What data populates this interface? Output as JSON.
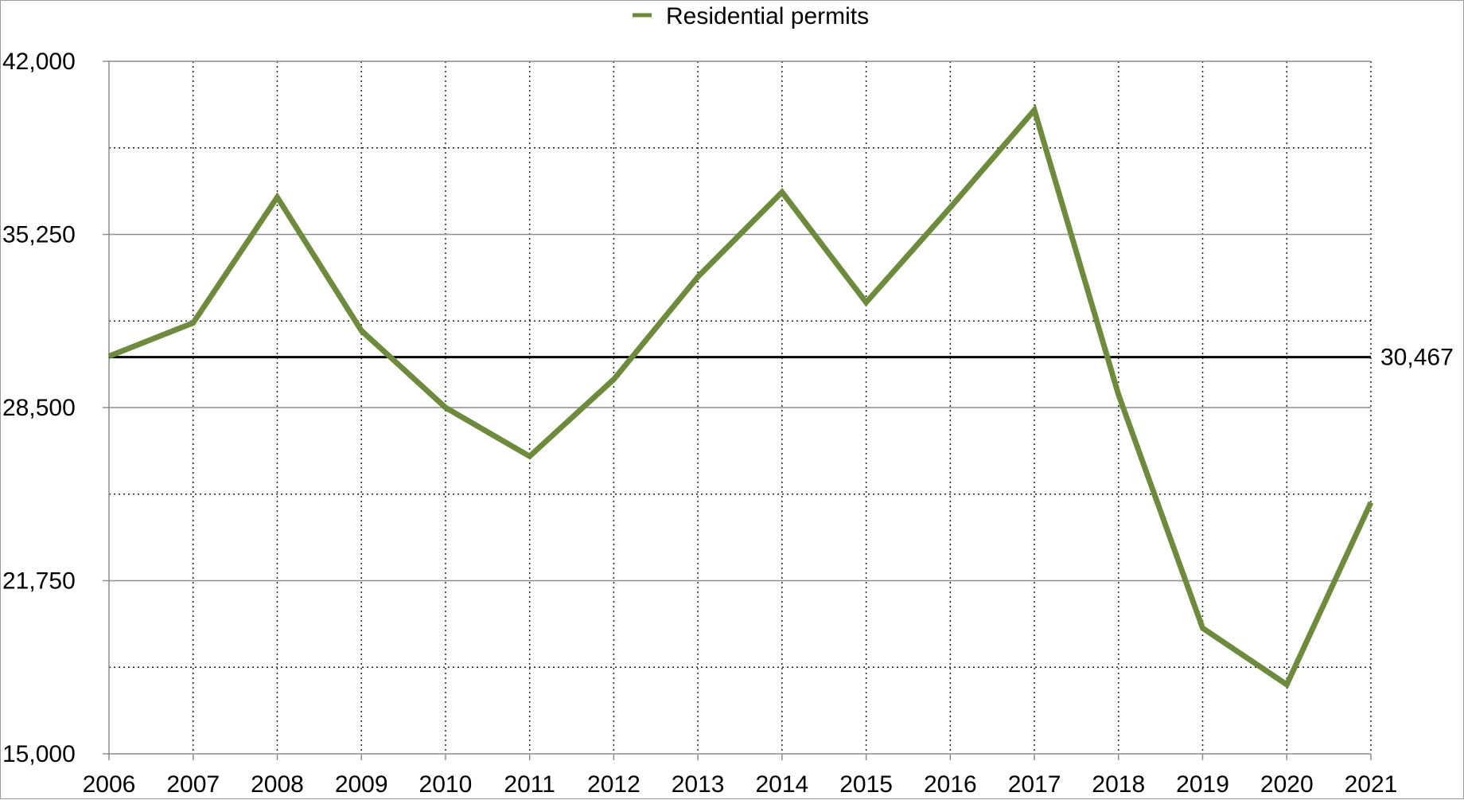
{
  "chart_data": {
    "type": "line",
    "title": "",
    "xlabel": "",
    "ylabel": "",
    "x": [
      "2006",
      "2007",
      "2008",
      "2009",
      "2010",
      "2011",
      "2012",
      "2013",
      "2014",
      "2015",
      "2016",
      "2017",
      "2018",
      "2019",
      "2020",
      "2021"
    ],
    "series": [
      {
        "name": "Residential permits",
        "color": "#6e8b3d",
        "values": [
          30500,
          31800,
          36700,
          31500,
          28500,
          26600,
          29600,
          33600,
          36900,
          32600,
          36300,
          40100,
          29000,
          19900,
          17700,
          24800
        ]
      }
    ],
    "reference_line": {
      "value": 30467,
      "label": "30,467",
      "color": "#000000"
    },
    "ylim": [
      15000,
      42000
    ],
    "y_ticks": [
      15000,
      21750,
      28500,
      35250,
      42000
    ],
    "y_tick_labels": [
      "15,000",
      "21,750",
      "28,500",
      "35,250",
      "42,000"
    ],
    "y_minor_gridlines": [
      18375,
      25125,
      31875,
      38625
    ],
    "grid": true,
    "legend_position": "top-center"
  }
}
